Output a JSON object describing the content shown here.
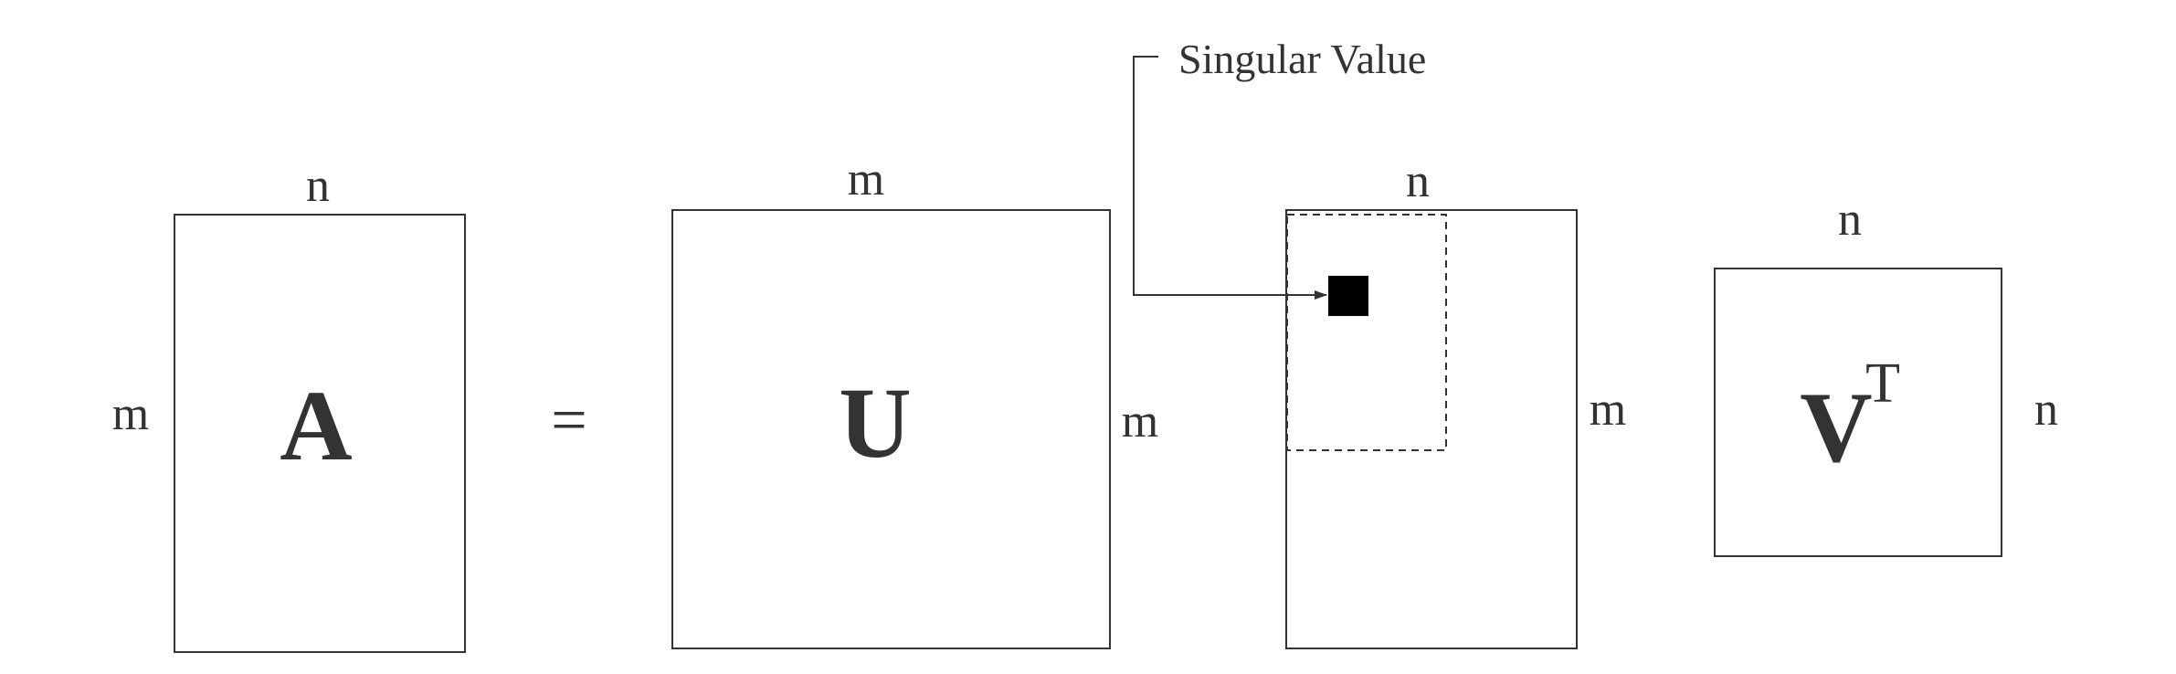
{
  "callout": {
    "text": "Singular Value"
  },
  "equation": {
    "equals": "="
  },
  "matrices": {
    "A": {
      "symbol": "A",
      "top_label": "n",
      "side_label": "m"
    },
    "U": {
      "symbol": "U",
      "top_label": "m",
      "side_label": "m"
    },
    "Sigma": {
      "top_label": "n",
      "side_label": "m"
    },
    "VT": {
      "symbol": "V",
      "superscript": "T",
      "top_label": "n",
      "side_label": "n"
    }
  },
  "colors": {
    "stroke": "#333333",
    "singular_value_fill": "#000000",
    "background": "#ffffff"
  }
}
